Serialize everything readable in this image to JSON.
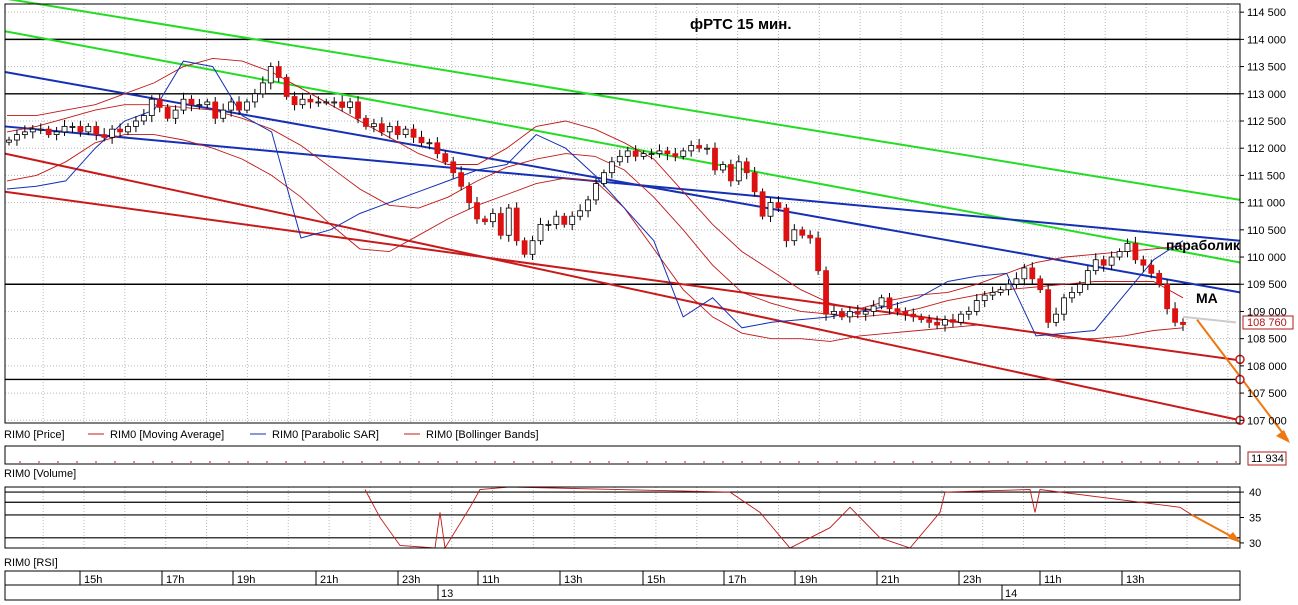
{
  "chart_data": {
    "type": "candlestick",
    "title": "фРТС    15 мин.",
    "price_panel": {
      "ylim": [
        106950,
        114650
      ],
      "yticks": [
        107000,
        107500,
        108000,
        108500,
        109000,
        109500,
        110000,
        110500,
        111000,
        111500,
        112000,
        112500,
        113000,
        113500,
        114000,
        114500
      ],
      "ytick_labels": [
        "107 000",
        "107 500",
        "108 000",
        "108 500",
        "109 000",
        "109 500",
        "110 000",
        "110 500",
        "111 000",
        "111 500",
        "112 000",
        "112 500",
        "113 000",
        "113 500",
        "114 000",
        "114 500"
      ],
      "last_price_label": "108 760",
      "last_price": 108760,
      "horizontal_levels": [
        114000,
        113000,
        109500,
        107750
      ],
      "legend": [
        "RIM0 [Price]",
        "RIM0 [Moving Average]",
        "RIM0 [Parabolic SAR]",
        "RIM0 [Bollinger Bands]"
      ],
      "closes": [
        112150,
        112250,
        112300,
        112350,
        112350,
        112250,
        112300,
        112400,
        112400,
        112300,
        112400,
        112250,
        112200,
        112350,
        112300,
        112400,
        112500,
        112600,
        112900,
        112750,
        112550,
        112700,
        112900,
        112800,
        112800,
        112850,
        112550,
        112700,
        112850,
        112700,
        112850,
        113000,
        113200,
        113500,
        113300,
        112950,
        112800,
        112900,
        112850,
        112850,
        112850,
        112850,
        112750,
        112850,
        112550,
        112400,
        112450,
        112300,
        112400,
        112250,
        112350,
        112200,
        112100,
        112100,
        111900,
        111750,
        111550,
        111300,
        111000,
        110700,
        110650,
        110800,
        110400,
        110900,
        110300,
        110050,
        110300,
        110600,
        110600,
        110750,
        110600,
        110750,
        110850,
        111050,
        111350,
        111550,
        111750,
        111850,
        111950,
        111850,
        111900,
        111900,
        111950,
        111900,
        111850,
        111950,
        112050,
        112000,
        112000,
        111600,
        111700,
        111400,
        111750,
        111550,
        111200,
        110750,
        111000,
        110900,
        110300,
        110500,
        110400,
        110350,
        109750,
        108950,
        109000,
        108900,
        109000,
        108950,
        109000,
        109100,
        109250,
        109050,
        109000,
        108950,
        108900,
        108850,
        108800,
        108750,
        108850,
        108800,
        108950,
        109000,
        109200,
        109300,
        109350,
        109400,
        109500,
        109600,
        109800,
        109600,
        109400,
        108800,
        108950,
        109250,
        109350,
        109500,
        109750,
        109950,
        109850,
        110000,
        110100,
        110250,
        109950,
        109850,
        109700,
        109500,
        109050,
        108800,
        108760
      ],
      "bollinger_upper": [
        112600,
        112600,
        112700,
        112800,
        113000,
        113200,
        113500,
        113650,
        113600,
        113400,
        113100,
        112800,
        112500,
        112200,
        111900,
        111700,
        111700,
        112000,
        112400,
        112500,
        112350,
        112100,
        111800,
        111200,
        110600,
        110100,
        109750,
        109400,
        109150,
        109050,
        109200,
        109300,
        109350,
        109500,
        109700,
        109900,
        110000,
        110050,
        110100,
        110150,
        110200
      ],
      "bollinger_lower": [
        111400,
        111500,
        111750,
        112100,
        112250,
        112250,
        112150,
        112000,
        111800,
        111500,
        111100,
        110600,
        110150,
        110100,
        110400,
        110700,
        110950,
        111150,
        111350,
        111450,
        111400,
        110900,
        110150,
        109400,
        108900,
        108600,
        108500,
        108500,
        108450,
        108550,
        108600,
        108650,
        108700,
        108750,
        108700,
        108600,
        108500,
        108500,
        108550,
        108650,
        108700
      ],
      "moving_average": [
        112300,
        112400,
        112550,
        112700,
        112800,
        112800,
        112750,
        112700,
        112550,
        112350,
        112050,
        111650,
        111250,
        110950,
        110900,
        111100,
        111400,
        111650,
        111800,
        111900,
        111850,
        111600,
        111100,
        110500,
        109850,
        109350,
        109150,
        109000,
        108950,
        108900,
        108950,
        109050,
        109200,
        109300,
        109400,
        109450,
        109500,
        109550,
        109550,
        109550,
        109250
      ],
      "parabolic_sar": [
        111250,
        111300,
        111400,
        112000,
        112500,
        112700,
        113600,
        113500,
        112600,
        112300,
        110350,
        110500,
        110800,
        111000,
        111200,
        111400,
        111600,
        111700,
        112250,
        112000,
        111500,
        110900,
        110300,
        108900,
        109250,
        108700,
        108800,
        108850,
        108900,
        109000,
        109100,
        109250,
        109550,
        109650,
        109700,
        108550,
        108600,
        108650,
        109300,
        109950,
        110300
      ],
      "channels": [
        {
          "color": "#22dd22",
          "from": 114750,
          "to": 111050
        },
        {
          "color": "#22dd22",
          "from": 114150,
          "to": 109900
        },
        {
          "color": "#1530b4",
          "from": 113400,
          "to": 109350
        },
        {
          "color": "#1530b4",
          "from": 112400,
          "to": 110300
        },
        {
          "color": "#c81a1a",
          "from": 111900,
          "to": 107000
        },
        {
          "color": "#c81a1a",
          "from": 111200,
          "to": 108100
        }
      ],
      "up_color": "#ffffff",
      "down_color": "#dd1111",
      "annotations": [
        "параболик",
        "MA"
      ]
    },
    "volume_panel": {
      "label": "RIM0 [Volume]",
      "last_value_label": "11 934"
    },
    "rsi_panel": {
      "label": "RIM0 [RSI]",
      "ylim": [
        29,
        41
      ],
      "yticks": [
        30,
        35,
        40
      ],
      "ytick_labels": [
        "30",
        "35",
        "40"
      ],
      "levels": [
        40,
        38,
        35.5,
        31
      ]
    },
    "x_axis": {
      "hour_labels": [
        "15h",
        "17h",
        "19h",
        "21h",
        "23h",
        "11h",
        "13h",
        "15h",
        "17h",
        "19h",
        "21h",
        "23h",
        "11h",
        "13h"
      ],
      "date_labels": [
        "13",
        "14"
      ]
    }
  }
}
